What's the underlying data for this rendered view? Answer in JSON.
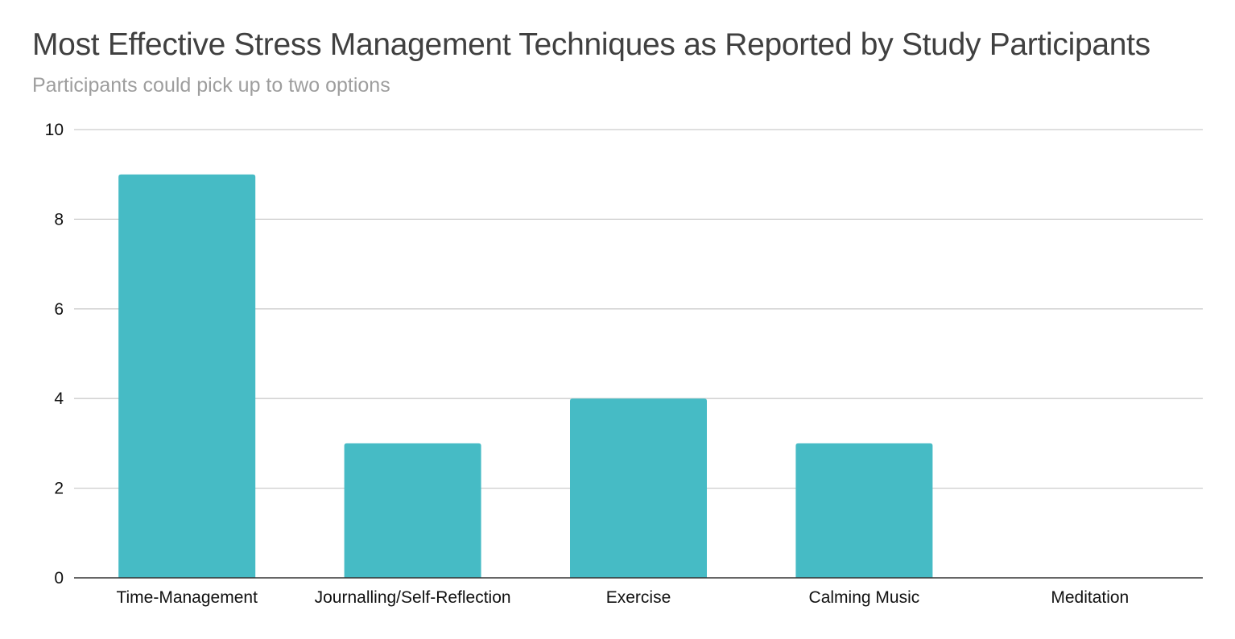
{
  "chart_data": {
    "type": "bar",
    "title": "Most Effective Stress Management Techniques as Reported by Study Participants",
    "subtitle": "Participants could pick up to two options",
    "categories": [
      "Time-Management",
      "Journalling/Self-Reflection",
      "Exercise",
      "Calming Music",
      "Meditation"
    ],
    "values": [
      9,
      3,
      4,
      3,
      0
    ],
    "ylim": [
      0,
      10
    ],
    "yticks": [
      0,
      2,
      4,
      6,
      8,
      10
    ],
    "xlabel": "",
    "ylabel": "",
    "grid": true,
    "legend": "none",
    "bar_color": "#46bbc5"
  }
}
